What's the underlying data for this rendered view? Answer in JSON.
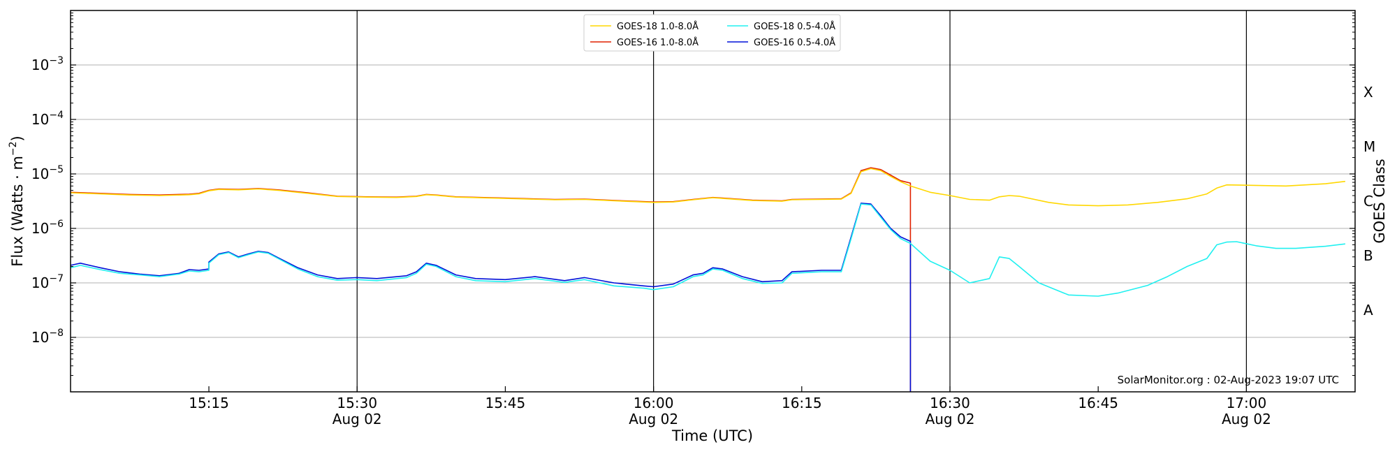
{
  "chart_data": {
    "type": "line",
    "title": "",
    "xlabel": "Time (UTC)",
    "ylabel_main": "Flux (Watts · m",
    "ylabel_sup": "−2",
    "ylabel_close": ")",
    "y2label": "GOES Class",
    "yscale": "log",
    "x_range_minutes": [
      "15:01",
      "17:11"
    ],
    "ylim": [
      1e-09,
      0.01
    ],
    "x_ticks": [
      {
        "time": "15:15",
        "label": "15:15",
        "date": ""
      },
      {
        "time": "15:30",
        "label": "15:30",
        "date": "Aug 02"
      },
      {
        "time": "15:45",
        "label": "15:45",
        "date": ""
      },
      {
        "time": "16:00",
        "label": "16:00",
        "date": "Aug 02"
      },
      {
        "time": "16:15",
        "label": "16:15",
        "date": ""
      },
      {
        "time": "16:30",
        "label": "16:30",
        "date": "Aug 02"
      },
      {
        "time": "16:45",
        "label": "16:45",
        "date": ""
      },
      {
        "time": "17:00",
        "label": "17:00",
        "date": "Aug 02"
      }
    ],
    "y_ticks": [
      {
        "value": 1e-08,
        "base": "10",
        "exp": "−8"
      },
      {
        "value": 1e-07,
        "base": "10",
        "exp": "−7"
      },
      {
        "value": 1e-06,
        "base": "10",
        "exp": "−6"
      },
      {
        "value": 1e-05,
        "base": "10",
        "exp": "−5"
      },
      {
        "value": 0.0001,
        "base": "10",
        "exp": "−4"
      },
      {
        "value": 0.001,
        "base": "10",
        "exp": "−3"
      }
    ],
    "goes_classes": [
      {
        "label": "A",
        "value": 3.16e-08
      },
      {
        "label": "B",
        "value": 3.16e-07
      },
      {
        "label": "C",
        "value": 3.16e-06
      },
      {
        "label": "M",
        "value": 3.16e-05
      },
      {
        "label": "X",
        "value": 0.000316
      }
    ],
    "vertical_lines": [
      "15:30",
      "16:00",
      "16:30",
      "17:00"
    ],
    "legend_position": "top-center",
    "credit": "SolarMonitor.org : 02-Aug-2023 19:07 UTC",
    "colors": {
      "goes18_long": "#ffd700",
      "goes16_long": "#e02000",
      "goes18_short": "#20f0f0",
      "goes16_short": "#0010d8",
      "grid": "#b0b0b0",
      "vline": "#000000"
    },
    "series": [
      {
        "name": "GOES-16 1.0-8.0Å",
        "color_key": "goes16_long",
        "legend_order": 1,
        "points": [
          [
            "15:01",
            4.6e-06
          ],
          [
            "15:04",
            4.4e-06
          ],
          [
            "15:07",
            4.2e-06
          ],
          [
            "15:10",
            4.1e-06
          ],
          [
            "15:13",
            4.25e-06
          ],
          [
            "15:14",
            4.4e-06
          ],
          [
            "15:15",
            5e-06
          ],
          [
            "15:16",
            5.3e-06
          ],
          [
            "15:18",
            5.2e-06
          ],
          [
            "15:20",
            5.4e-06
          ],
          [
            "15:22",
            5.1e-06
          ],
          [
            "15:25",
            4.5e-06
          ],
          [
            "15:28",
            3.9e-06
          ],
          [
            "15:31",
            3.8e-06
          ],
          [
            "15:34",
            3.75e-06
          ],
          [
            "15:36",
            3.9e-06
          ],
          [
            "15:37",
            4.2e-06
          ],
          [
            "15:38",
            4.1e-06
          ],
          [
            "15:40",
            3.8e-06
          ],
          [
            "15:45",
            3.6e-06
          ],
          [
            "15:50",
            3.4e-06
          ],
          [
            "15:53",
            3.45e-06
          ],
          [
            "15:57",
            3.2e-06
          ],
          [
            "16:00",
            3.05e-06
          ],
          [
            "16:02",
            3.1e-06
          ],
          [
            "16:04",
            3.4e-06
          ],
          [
            "16:06",
            3.7e-06
          ],
          [
            "16:07",
            3.6e-06
          ],
          [
            "16:10",
            3.3e-06
          ],
          [
            "16:13",
            3.2e-06
          ],
          [
            "16:14",
            3.4e-06
          ],
          [
            "16:19",
            3.5e-06
          ],
          [
            "16:20",
            4.5e-06
          ],
          [
            "16:21",
            1.15e-05
          ],
          [
            "16:22",
            1.3e-05
          ],
          [
            "16:23",
            1.2e-05
          ],
          [
            "16:24",
            9.5e-06
          ],
          [
            "16:25",
            7.5e-06
          ],
          [
            "16:26",
            6.8e-06
          ],
          [
            "16:26",
            1e-09
          ]
        ]
      },
      {
        "name": "GOES-18 1.0-8.0Å",
        "color_key": "goes18_long",
        "legend_order": 0,
        "points": [
          [
            "15:01",
            4.5e-06
          ],
          [
            "15:04",
            4.3e-06
          ],
          [
            "15:07",
            4.1e-06
          ],
          [
            "15:10",
            4e-06
          ],
          [
            "15:13",
            4.15e-06
          ],
          [
            "15:14",
            4.3e-06
          ],
          [
            "15:15",
            4.9e-06
          ],
          [
            "15:16",
            5.2e-06
          ],
          [
            "15:18",
            5.1e-06
          ],
          [
            "15:20",
            5.3e-06
          ],
          [
            "15:22",
            5e-06
          ],
          [
            "15:25",
            4.4e-06
          ],
          [
            "15:28",
            3.85e-06
          ],
          [
            "15:31",
            3.75e-06
          ],
          [
            "15:34",
            3.7e-06
          ],
          [
            "15:36",
            3.85e-06
          ],
          [
            "15:37",
            4.15e-06
          ],
          [
            "15:38",
            4.05e-06
          ],
          [
            "15:40",
            3.75e-06
          ],
          [
            "15:45",
            3.55e-06
          ],
          [
            "15:50",
            3.35e-06
          ],
          [
            "15:53",
            3.4e-06
          ],
          [
            "15:57",
            3.15e-06
          ],
          [
            "16:00",
            3e-06
          ],
          [
            "16:02",
            3.05e-06
          ],
          [
            "16:04",
            3.35e-06
          ],
          [
            "16:06",
            3.65e-06
          ],
          [
            "16:07",
            3.55e-06
          ],
          [
            "16:10",
            3.25e-06
          ],
          [
            "16:13",
            3.15e-06
          ],
          [
            "16:14",
            3.35e-06
          ],
          [
            "16:19",
            3.45e-06
          ],
          [
            "16:20",
            4.4e-06
          ],
          [
            "16:21",
            1.1e-05
          ],
          [
            "16:22",
            1.25e-05
          ],
          [
            "16:23",
            1.15e-05
          ],
          [
            "16:24",
            9e-06
          ],
          [
            "16:25",
            7.2e-06
          ],
          [
            "16:26",
            6e-06
          ],
          [
            "16:28",
            4.6e-06
          ],
          [
            "16:30",
            4e-06
          ],
          [
            "16:32",
            3.4e-06
          ],
          [
            "16:34",
            3.3e-06
          ],
          [
            "16:35",
            3.8e-06
          ],
          [
            "16:36",
            4e-06
          ],
          [
            "16:37",
            3.9e-06
          ],
          [
            "16:40",
            3e-06
          ],
          [
            "16:42",
            2.7e-06
          ],
          [
            "16:45",
            2.6e-06
          ],
          [
            "16:48",
            2.7e-06
          ],
          [
            "16:51",
            3e-06
          ],
          [
            "16:54",
            3.5e-06
          ],
          [
            "16:56",
            4.3e-06
          ],
          [
            "16:57",
            5.5e-06
          ],
          [
            "16:58",
            6.3e-06
          ],
          [
            "17:00",
            6.2e-06
          ],
          [
            "17:04",
            6e-06
          ],
          [
            "17:08",
            6.6e-06
          ],
          [
            "17:10",
            7.3e-06
          ]
        ]
      },
      {
        "name": "GOES-16 0.5-4.0Å",
        "color_key": "goes16_short",
        "legend_order": 3,
        "points": [
          [
            "15:01",
            2.1e-07
          ],
          [
            "15:02",
            2.3e-07
          ],
          [
            "15:04",
            1.9e-07
          ],
          [
            "15:06",
            1.6e-07
          ],
          [
            "15:08",
            1.45e-07
          ],
          [
            "15:10",
            1.35e-07
          ],
          [
            "15:12",
            1.5e-07
          ],
          [
            "15:13",
            1.75e-07
          ],
          [
            "15:14",
            1.7e-07
          ],
          [
            "15:15",
            1.8e-07
          ],
          [
            "15:15",
            2.4e-07
          ],
          [
            "15:16",
            3.4e-07
          ],
          [
            "15:17",
            3.7e-07
          ],
          [
            "15:18",
            3e-07
          ],
          [
            "15:19",
            3.4e-07
          ],
          [
            "15:20",
            3.8e-07
          ],
          [
            "15:21",
            3.6e-07
          ],
          [
            "15:22",
            2.9e-07
          ],
          [
            "15:24",
            1.9e-07
          ],
          [
            "15:26",
            1.4e-07
          ],
          [
            "15:28",
            1.2e-07
          ],
          [
            "15:30",
            1.25e-07
          ],
          [
            "15:32",
            1.2e-07
          ],
          [
            "15:35",
            1.35e-07
          ],
          [
            "15:36",
            1.6e-07
          ],
          [
            "15:37",
            2.3e-07
          ],
          [
            "15:38",
            2.1e-07
          ],
          [
            "15:40",
            1.4e-07
          ],
          [
            "15:42",
            1.2e-07
          ],
          [
            "15:45",
            1.15e-07
          ],
          [
            "15:48",
            1.3e-07
          ],
          [
            "15:51",
            1.1e-07
          ],
          [
            "15:53",
            1.25e-07
          ],
          [
            "15:56",
            1e-07
          ],
          [
            "15:59",
            8.8e-08
          ],
          [
            "16:00",
            8.5e-08
          ],
          [
            "16:02",
            9.5e-08
          ],
          [
            "16:04",
            1.4e-07
          ],
          [
            "16:05",
            1.5e-07
          ],
          [
            "16:06",
            1.9e-07
          ],
          [
            "16:07",
            1.8e-07
          ],
          [
            "16:09",
            1.3e-07
          ],
          [
            "16:11",
            1.05e-07
          ],
          [
            "16:13",
            1.1e-07
          ],
          [
            "16:14",
            1.6e-07
          ],
          [
            "16:17",
            1.7e-07
          ],
          [
            "16:19",
            1.7e-07
          ],
          [
            "16:20",
            7e-07
          ],
          [
            "16:21",
            2.9e-06
          ],
          [
            "16:22",
            2.8e-06
          ],
          [
            "16:23",
            1.7e-06
          ],
          [
            "16:24",
            1e-06
          ],
          [
            "16:25",
            7e-07
          ],
          [
            "16:26",
            5.8e-07
          ],
          [
            "16:26",
            1e-09
          ]
        ]
      },
      {
        "name": "GOES-18 0.5-4.0Å",
        "color_key": "goes18_short",
        "legend_order": 2,
        "points": [
          [
            "15:01",
            1.9e-07
          ],
          [
            "15:02",
            2.1e-07
          ],
          [
            "15:04",
            1.75e-07
          ],
          [
            "15:06",
            1.5e-07
          ],
          [
            "15:08",
            1.4e-07
          ],
          [
            "15:10",
            1.3e-07
          ],
          [
            "15:12",
            1.45e-07
          ],
          [
            "15:13",
            1.65e-07
          ],
          [
            "15:14",
            1.6e-07
          ],
          [
            "15:15",
            1.7e-07
          ],
          [
            "15:15",
            2.3e-07
          ],
          [
            "15:16",
            3.3e-07
          ],
          [
            "15:17",
            3.6e-07
          ],
          [
            "15:18",
            2.9e-07
          ],
          [
            "15:19",
            3.3e-07
          ],
          [
            "15:20",
            3.7e-07
          ],
          [
            "15:21",
            3.5e-07
          ],
          [
            "15:22",
            2.8e-07
          ],
          [
            "15:24",
            1.8e-07
          ],
          [
            "15:26",
            1.3e-07
          ],
          [
            "15:28",
            1.12e-07
          ],
          [
            "15:30",
            1.15e-07
          ],
          [
            "15:32",
            1.1e-07
          ],
          [
            "15:35",
            1.25e-07
          ],
          [
            "15:36",
            1.5e-07
          ],
          [
            "15:37",
            2.2e-07
          ],
          [
            "15:38",
            2e-07
          ],
          [
            "15:40",
            1.3e-07
          ],
          [
            "15:42",
            1.1e-07
          ],
          [
            "15:45",
            1.05e-07
          ],
          [
            "15:48",
            1.2e-07
          ],
          [
            "15:51",
            1.02e-07
          ],
          [
            "15:53",
            1.15e-07
          ],
          [
            "15:56",
            8.8e-08
          ],
          [
            "15:59",
            8e-08
          ],
          [
            "16:00",
            7.5e-08
          ],
          [
            "16:02",
            8.5e-08
          ],
          [
            "16:04",
            1.3e-07
          ],
          [
            "16:05",
            1.4e-07
          ],
          [
            "16:06",
            1.8e-07
          ],
          [
            "16:07",
            1.7e-07
          ],
          [
            "16:09",
            1.2e-07
          ],
          [
            "16:11",
            9.8e-08
          ],
          [
            "16:13",
            1e-07
          ],
          [
            "16:14",
            1.5e-07
          ],
          [
            "16:17",
            1.6e-07
          ],
          [
            "16:19",
            1.6e-07
          ],
          [
            "16:20",
            6.5e-07
          ],
          [
            "16:21",
            2.8e-06
          ],
          [
            "16:22",
            2.7e-06
          ],
          [
            "16:23",
            1.6e-06
          ],
          [
            "16:24",
            9.5e-07
          ],
          [
            "16:25",
            6.5e-07
          ],
          [
            "16:26",
            5.3e-07
          ],
          [
            "16:28",
            2.5e-07
          ],
          [
            "16:30",
            1.7e-07
          ],
          [
            "16:32",
            1e-07
          ],
          [
            "16:34",
            1.2e-07
          ],
          [
            "16:35",
            3e-07
          ],
          [
            "16:36",
            2.8e-07
          ],
          [
            "16:37",
            2e-07
          ],
          [
            "16:39",
            1e-07
          ],
          [
            "16:42",
            6e-08
          ],
          [
            "16:44",
            5.8e-08
          ],
          [
            "16:45",
            5.7e-08
          ],
          [
            "16:47",
            6.5e-08
          ],
          [
            "16:50",
            9e-08
          ],
          [
            "16:52",
            1.3e-07
          ],
          [
            "16:54",
            2e-07
          ],
          [
            "16:56",
            2.8e-07
          ],
          [
            "16:57",
            5e-07
          ],
          [
            "16:58",
            5.6e-07
          ],
          [
            "16:59",
            5.7e-07
          ],
          [
            "17:01",
            4.8e-07
          ],
          [
            "17:03",
            4.3e-07
          ],
          [
            "17:05",
            4.3e-07
          ],
          [
            "17:08",
            4.7e-07
          ],
          [
            "17:10",
            5.2e-07
          ]
        ]
      }
    ]
  }
}
